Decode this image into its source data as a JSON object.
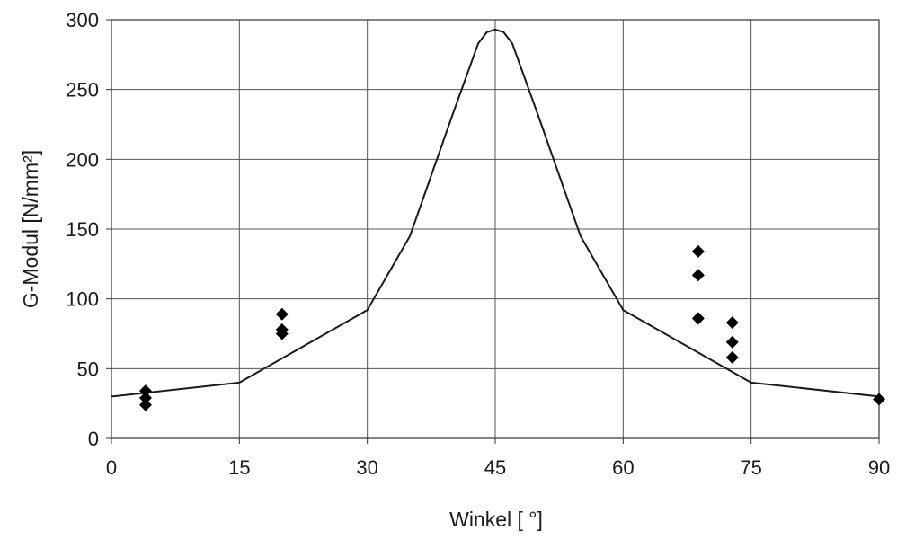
{
  "chart_data": {
    "type": "line",
    "title": "",
    "xlabel": "Winkel [ °]",
    "ylabel": "G-Modul [N/mm²]",
    "xlim": [
      0,
      90
    ],
    "ylim": [
      0,
      300
    ],
    "xticks": [
      0,
      15,
      30,
      45,
      60,
      75,
      90
    ],
    "yticks": [
      0,
      50,
      100,
      150,
      200,
      250,
      300
    ],
    "xtick_labels": [
      "0",
      "15",
      "30",
      "45",
      "60",
      "75",
      "90"
    ],
    "ytick_labels": [
      "0",
      "50",
      "100",
      "150",
      "200",
      "250",
      "300"
    ],
    "grid": true,
    "legend": "none",
    "series": [
      {
        "type": "line",
        "color": "#1a1a1a",
        "x": [
          0,
          15,
          30,
          35,
          40,
          43,
          44,
          45,
          46,
          47,
          50,
          55,
          60,
          75,
          90
        ],
        "y": [
          30,
          40,
          92,
          145,
          232,
          283,
          291,
          293,
          291,
          283,
          232,
          145,
          92,
          40,
          30
        ]
      },
      {
        "type": "scatter",
        "marker": "diamond",
        "color": "#000000",
        "x": [
          4,
          4,
          4,
          20,
          20,
          20,
          68.8,
          68.8,
          68.8,
          72.8,
          72.8,
          72.8,
          90
        ],
        "y": [
          34,
          29,
          24,
          89,
          78,
          75,
          134,
          117,
          86,
          83,
          69,
          58,
          28
        ]
      }
    ]
  }
}
